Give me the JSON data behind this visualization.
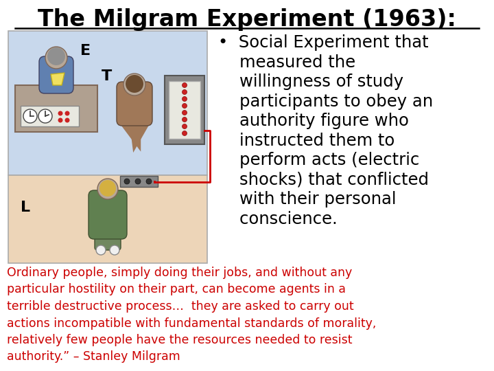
{
  "title": "The Milgram Experiment (1963):",
  "title_fontsize": 24,
  "title_color": "#000000",
  "bullet_lines": [
    "•  Social Experiment that",
    "    measured the",
    "    willingness of study",
    "    participants to obey an",
    "    authority figure who",
    "    instructed them to",
    "    perform acts (electric",
    "    shocks) that conflicted",
    "    with their personal",
    "    conscience."
  ],
  "bullet_fontsize": 17.5,
  "quote_lines": [
    "Ordinary people, simply doing their jobs, and without any",
    "particular hostility on their part, can become agents in a",
    "terrible destructive process…  they are asked to carry out",
    "actions incompatible with fundamental standards of morality,",
    "relatively few people have the resources needed to resist",
    "authority.” – Stanley Milgram"
  ],
  "quote_fontsize": 12.5,
  "quote_color": "#CC0000",
  "background_color": "#FFFFFF",
  "upper_room_color": "#C8D8EC",
  "lower_room_color": "#EDD5B8",
  "room_border_color": "#AAAAAA"
}
